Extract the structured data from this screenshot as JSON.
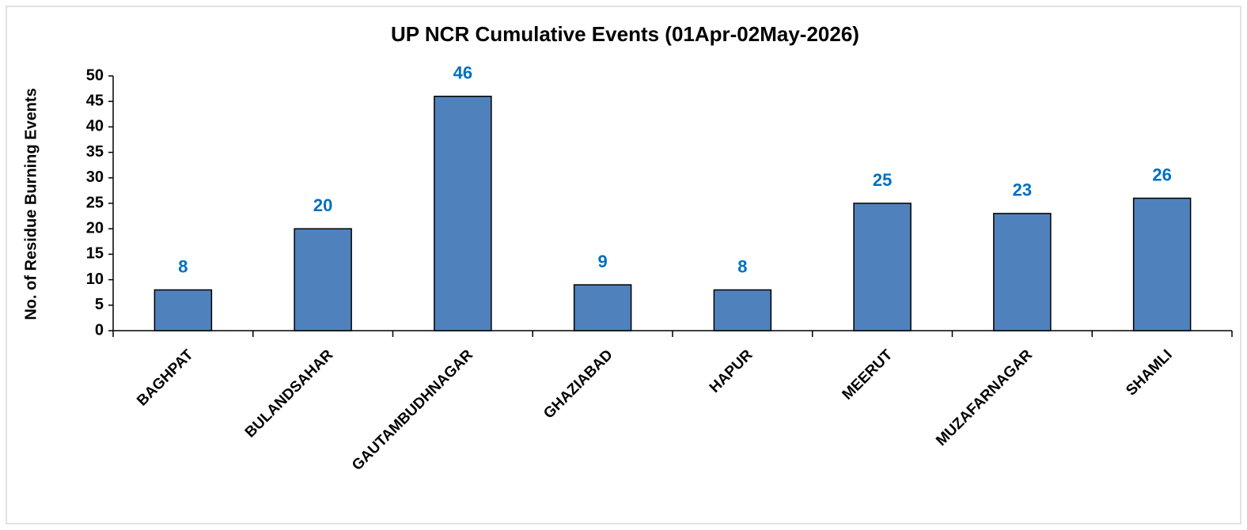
{
  "chart_data": {
    "type": "bar",
    "title": "UP NCR Cumulative Events (01Apr-02May-2026)",
    "y_label": "No. of Residue Burning Events",
    "categories": [
      "BAGHPAT",
      "BULANDSAHAR",
      "GAUTAMBUDHNAGAR",
      "GHAZIABAD",
      "HAPUR",
      "MEERUT",
      "MUZAFARNAGAR",
      "SHAMLI"
    ],
    "values": [
      8,
      20,
      46,
      9,
      8,
      25,
      23,
      26
    ],
    "color": "#4f81bd",
    "label_color": "#0070c0",
    "ylim": [
      0,
      50
    ],
    "yticks": [
      0,
      5,
      10,
      15,
      20,
      25,
      30,
      35,
      40,
      45,
      50
    ],
    "grid": false
  }
}
